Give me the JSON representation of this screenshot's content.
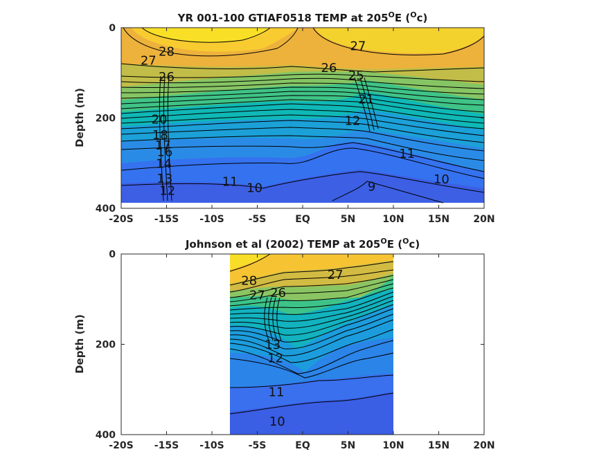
{
  "chart_data": [
    {
      "type": "heatmap",
      "title": "YR 001-100 GTIAF0518 TEMP at 205",
      "title_degree": "O",
      "title_tail": "E (",
      "title_unit": "c)",
      "ylabel": "Depth (m)",
      "x_ticks": [
        "-20S",
        "-15S",
        "-10S",
        "-5S",
        "EQ",
        "5N",
        "10N",
        "15N",
        "20N"
      ],
      "x_values": [
        -20,
        -15,
        -10,
        -5,
        0,
        5,
        10,
        15,
        20
      ],
      "y_ticks": [
        "0",
        "200",
        "400"
      ],
      "xlim": [
        -20,
        20
      ],
      "ylim": [
        0,
        400
      ],
      "y_reversed": true,
      "data_extent": {
        "x": [
          -20,
          20
        ],
        "y": [
          0,
          388
        ]
      },
      "colormap": "parula",
      "contour_labels": [
        {
          "text": "28",
          "lat": -15,
          "depth": 62
        },
        {
          "text": "27",
          "lat": -17.0,
          "depth": 82
        },
        {
          "text": "27",
          "lat": 6.1,
          "depth": 50
        },
        {
          "text": "26",
          "lat": -15.0,
          "depth": 118
        },
        {
          "text": "26",
          "lat": 2.9,
          "depth": 98
        },
        {
          "text": "25",
          "lat": 5.9,
          "depth": 115
        },
        {
          "text": "21",
          "lat": 7.0,
          "depth": 168
        },
        {
          "text": "20",
          "lat": -15.8,
          "depth": 212
        },
        {
          "text": "18",
          "lat": -15.7,
          "depth": 247
        },
        {
          "text": "17",
          "lat": -15.4,
          "depth": 270
        },
        {
          "text": "16",
          "lat": -15.2,
          "depth": 284
        },
        {
          "text": "14",
          "lat": -15.3,
          "depth": 310
        },
        {
          "text": "13",
          "lat": -15.2,
          "depth": 343
        },
        {
          "text": "12",
          "lat": -14.9,
          "depth": 370
        },
        {
          "text": "12",
          "lat": 5.5,
          "depth": 215
        },
        {
          "text": "11",
          "lat": -8.0,
          "depth": 350
        },
        {
          "text": "11",
          "lat": 11.5,
          "depth": 288
        },
        {
          "text": "10",
          "lat": -5.3,
          "depth": 364
        },
        {
          "text": "10",
          "lat": 15.3,
          "depth": 345
        },
        {
          "text": "9",
          "lat": 7.6,
          "depth": 361
        }
      ]
    },
    {
      "type": "heatmap",
      "title": "Johnson et al (2002) TEMP at 205",
      "title_degree": "O",
      "title_tail": "E (",
      "title_unit": "c)",
      "ylabel": "Depth (m)",
      "x_ticks": [
        "-20S",
        "-15S",
        "-10S",
        "-5S",
        "EQ",
        "5N",
        "10N",
        "15N",
        "20N"
      ],
      "x_values": [
        -20,
        -15,
        -10,
        -5,
        0,
        5,
        10,
        15,
        20
      ],
      "y_ticks": [
        "0",
        "200",
        "400"
      ],
      "xlim": [
        -20,
        20
      ],
      "ylim": [
        0,
        400
      ],
      "y_reversed": true,
      "data_extent": {
        "x": [
          -8,
          10
        ],
        "y": [
          0,
          400
        ]
      },
      "colormap": "parula",
      "contour_labels": [
        {
          "text": "28",
          "lat": -5.9,
          "depth": 68
        },
        {
          "text": "27",
          "lat": -5.0,
          "depth": 100
        },
        {
          "text": "27",
          "lat": 3.6,
          "depth": 55
        },
        {
          "text": "26",
          "lat": -2.7,
          "depth": 95
        },
        {
          "text": "13",
          "lat": -3.3,
          "depth": 210
        },
        {
          "text": "12",
          "lat": -3.0,
          "depth": 240
        },
        {
          "text": "11",
          "lat": -2.9,
          "depth": 315
        },
        {
          "text": "10",
          "lat": -2.8,
          "depth": 380
        }
      ]
    }
  ]
}
